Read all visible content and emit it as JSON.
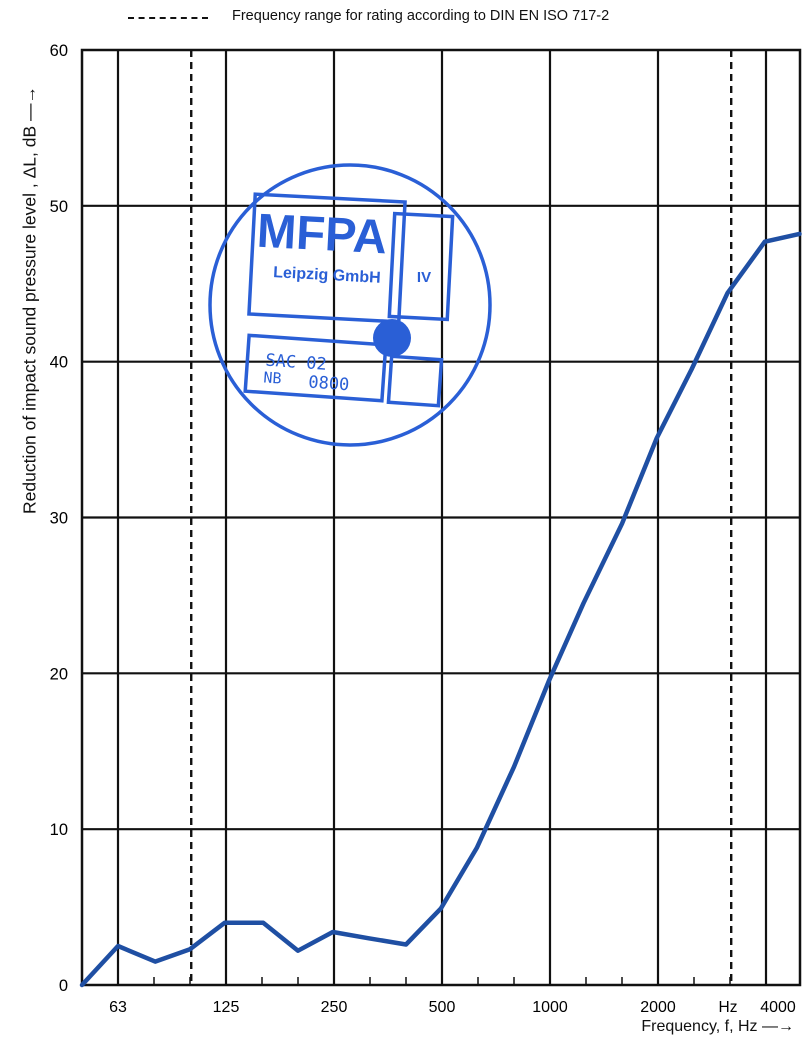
{
  "legend": {
    "dash_symbol": "- - - - -",
    "text": "Frequency range for rating according to DIN EN ISO 717-2"
  },
  "stamp": {
    "org": "MFPA",
    "sub": "Leipzig GmbH",
    "box": "IV",
    "line1": "SAC 02",
    "line2a": "NB",
    "line2b": "0800",
    "color": "#2a5fd6"
  },
  "chart_data": {
    "type": "line",
    "ylabel": "Reduction of impact sound pressure level ,  ΔL, dB —→",
    "xlabel": "Frequency, f, Hz —→",
    "unit_label": "Hz",
    "ylim": [
      0,
      60
    ],
    "yticks": [
      "0",
      "10",
      "20",
      "30",
      "40",
      "50",
      "60"
    ],
    "x_scale": "log (third-octave bands)",
    "x_tick_labels": [
      "63",
      "125",
      "250",
      "500",
      "1000",
      "2000",
      "4000"
    ],
    "rating_range_hz": [
      100,
      3150
    ],
    "grid": true,
    "series": [
      {
        "color": "#1f4fa3",
        "x": [
          50,
          63,
          80,
          100,
          125,
          160,
          200,
          250,
          315,
          400,
          500,
          630,
          800,
          1000,
          1250,
          1600,
          2000,
          2500,
          3150,
          4000,
          5000
        ],
        "values": [
          0,
          2.5,
          1.5,
          2.3,
          4.0,
          4.0,
          2.2,
          3.4,
          3.0,
          2.6,
          4.9,
          8.8,
          14.0,
          19.5,
          24.5,
          29.6,
          35.1,
          39.5,
          44.4,
          47.7,
          48.2
        ]
      }
    ]
  }
}
